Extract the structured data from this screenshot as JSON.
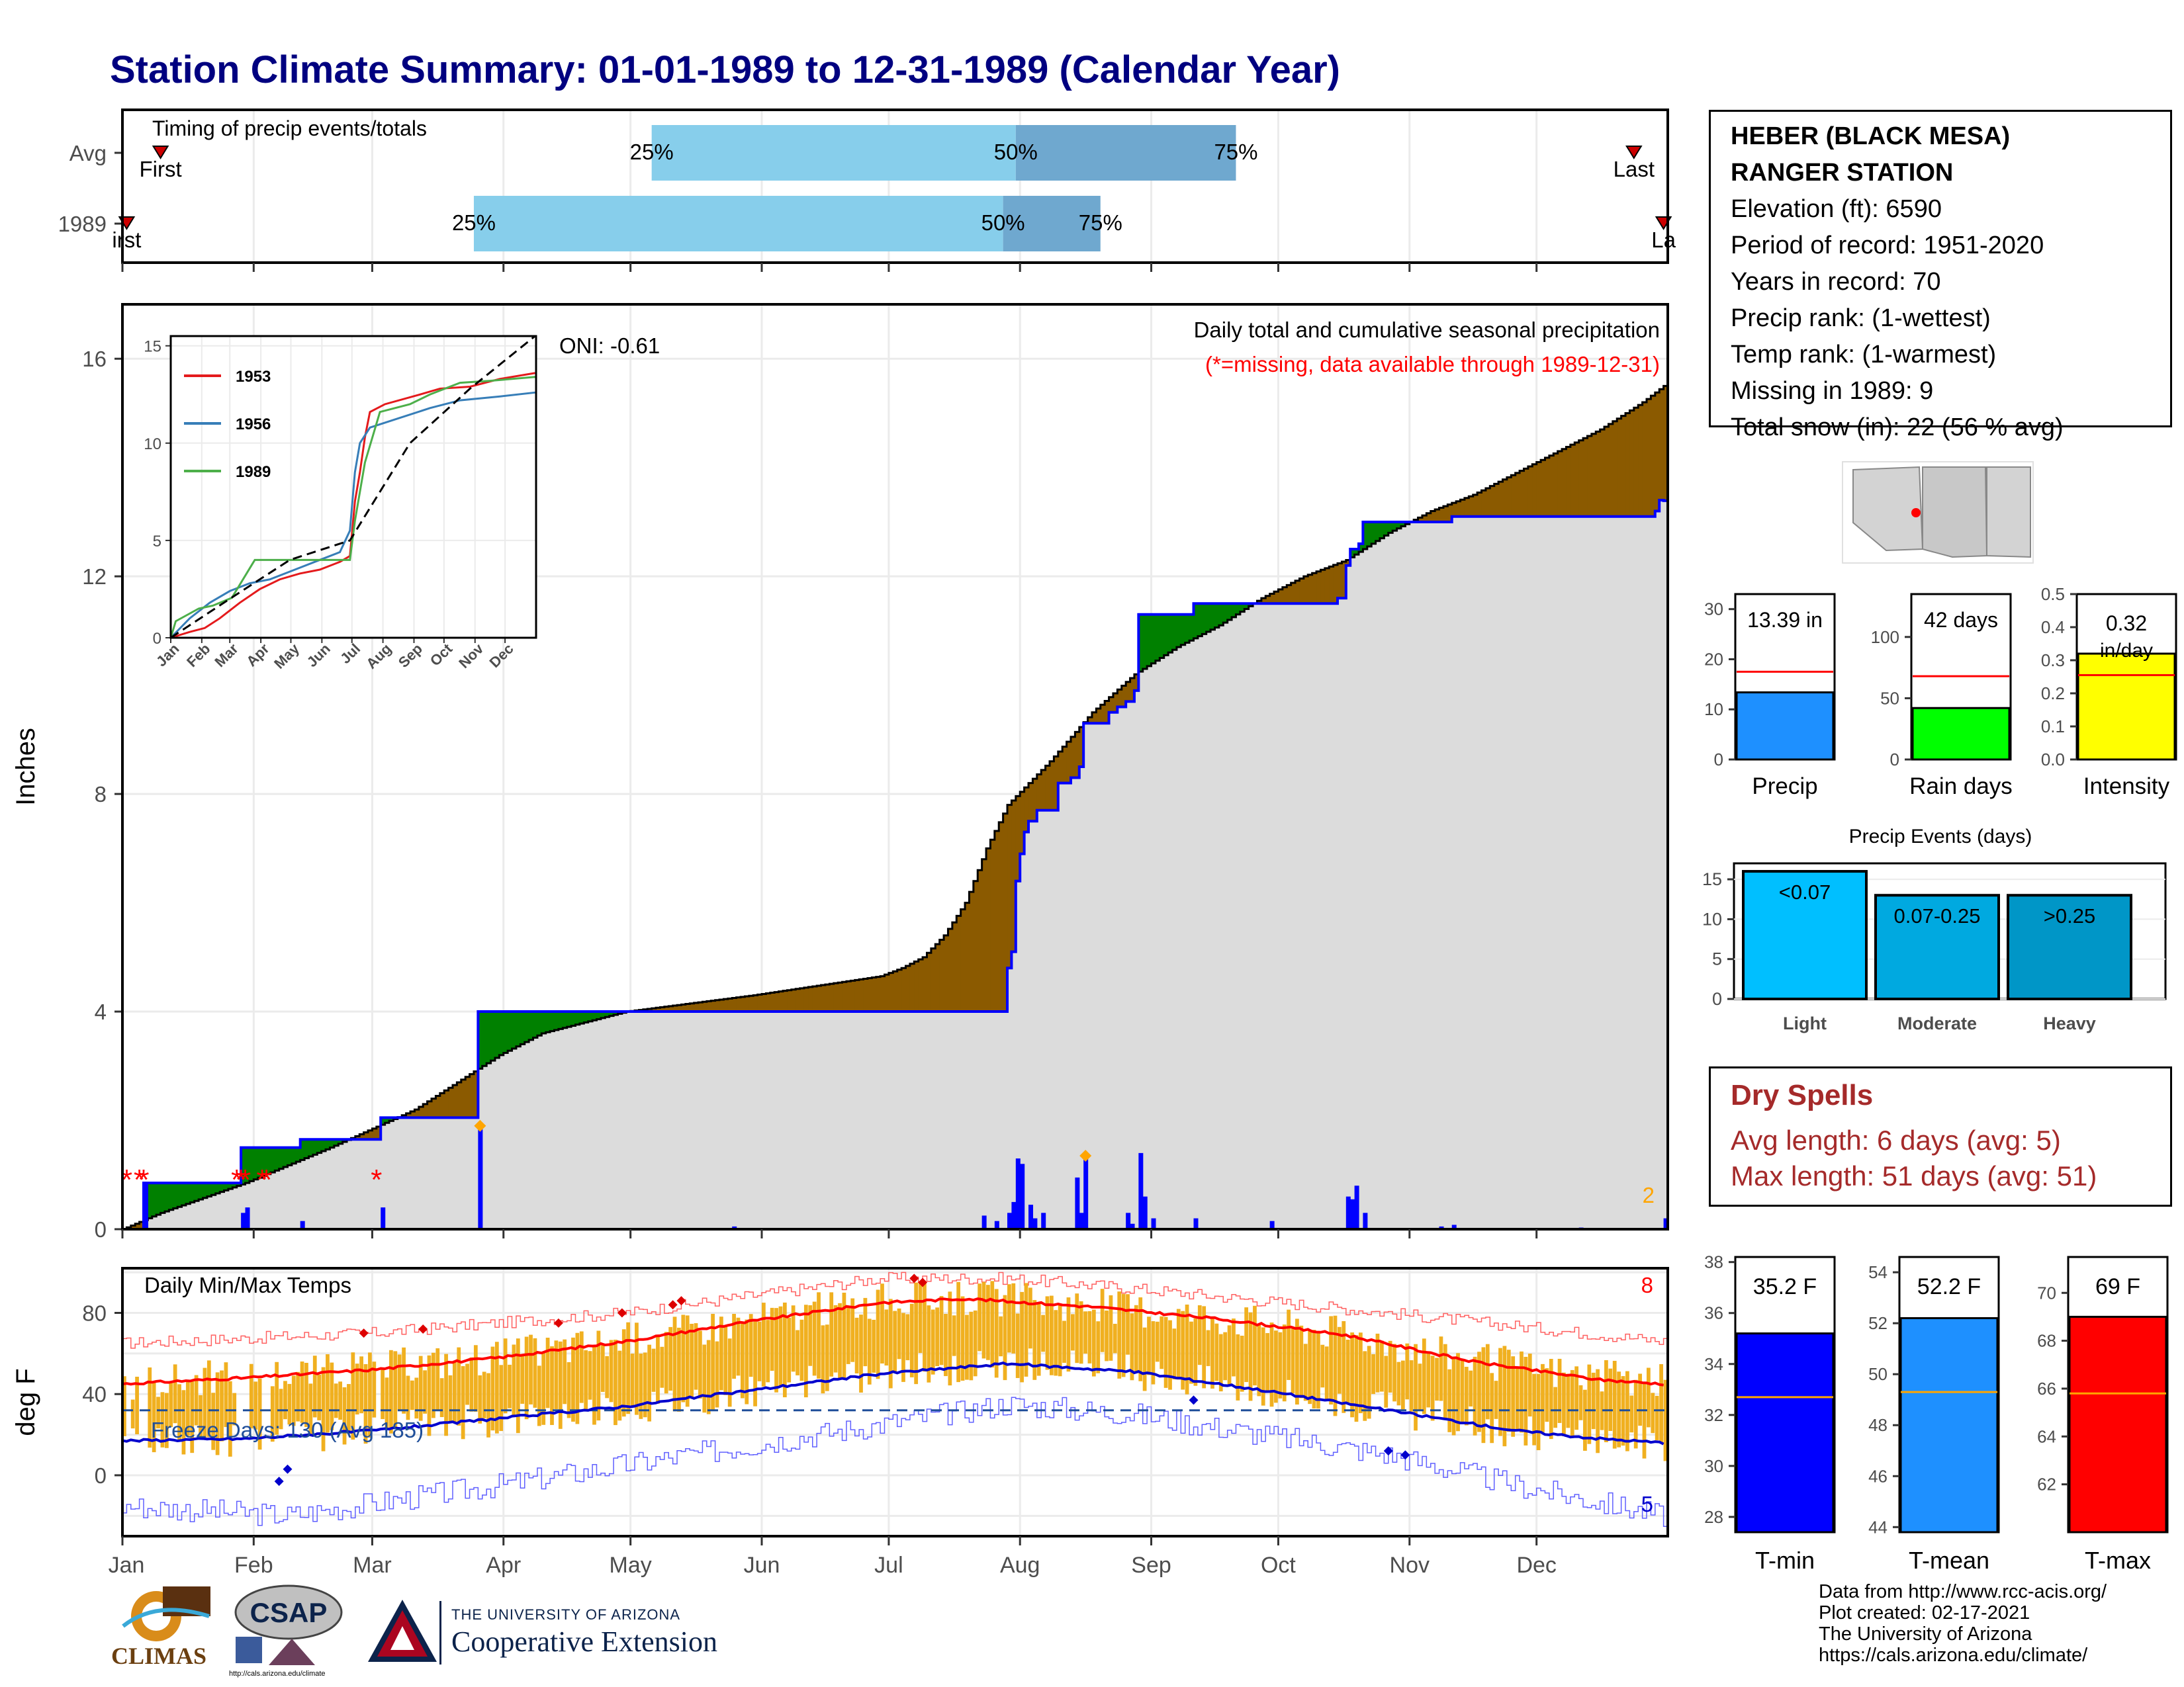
{
  "title": "Station Climate Summary: 01-01-1989 to 12-31-1989 (Calendar Year)",
  "station": {
    "name_line1": "HEBER (BLACK MESA)",
    "name_line2": "RANGER STATION",
    "elevation": "Elevation (ft): 6590",
    "period": "Period of record: 1951-2020",
    "years": "Years in record: 70",
    "precip_rank": "Precip rank:  (1-wettest)",
    "temp_rank": "Temp rank:  (1-warmest)",
    "missing": "Missing in 1989: 9",
    "snow": "Total snow (in): 22 (56 % avg)"
  },
  "dry_spells": {
    "title": "Dry Spells",
    "avg": "Avg length: 6 days (avg: 5)",
    "max": "Max length: 51 days (avg: 51)"
  },
  "footer": {
    "line1": "Data from http://www.rcc-acis.org/",
    "line2": "Plot created: 02-17-2021",
    "line3": "The University of Arizona",
    "line4": "https://cals.arizona.edu/climate/"
  },
  "logos": {
    "climas": "CLIMAS",
    "csap": "CSAP",
    "csap_url": "http://cals.arizona.edu/climate",
    "ua_line1": "THE UNIVERSITY OF ARIZONA",
    "ua_line2": "Cooperative Extension"
  },
  "colors": {
    "navy_title": "#000080",
    "precip_fill_above": "#8b5a00",
    "precip_fill_below": "#008000",
    "cum_avg_fill": "#dcdcdc",
    "daily_bar": "#0000ff",
    "temp_bar": "#f0b020",
    "tmax_line": "#ff0000",
    "tmin_line": "#0000cd",
    "timing_light": "#87ceeb",
    "timing_dark": "#6fa8cf",
    "dry_spell": "#a52a2a"
  },
  "chart_data": [
    {
      "id": "timing",
      "type": "bar",
      "title": "Timing of precip events/totals",
      "categories": [
        "Avg",
        "1989"
      ],
      "series": [
        {
          "name": "Avg",
          "first_day": 10,
          "p25_day": 126,
          "p50_day": 212,
          "p75_day": 264,
          "last_day": 358
        },
        {
          "name": "1989",
          "first_day": 2,
          "p25_day": 84,
          "p50_day": 209,
          "p75_day": 232,
          "last_day": 365
        }
      ],
      "labels": {
        "first": "First",
        "last": "Last",
        "first_1989": "irst",
        "last_1989": "La",
        "p25": "25%",
        "p50": "50%",
        "p75": "75%"
      }
    },
    {
      "id": "cumulative_precip",
      "type": "area",
      "ylabel": "Inches",
      "ylim": [
        0,
        17
      ],
      "yticks": [
        0,
        4,
        8,
        12,
        16
      ],
      "annotation_top": "Daily total and cumulative seasonal precipitation",
      "annotation_missing": "(*=missing, data available through 1989-12-31)",
      "oni": "ONI: -0.61",
      "corner_label": "2",
      "observed_cumulative": [
        [
          1,
          0
        ],
        [
          5,
          0
        ],
        [
          6,
          0.85
        ],
        [
          28,
          0.85
        ],
        [
          29,
          1.5
        ],
        [
          42,
          1.5
        ],
        [
          43,
          1.65
        ],
        [
          61,
          1.65
        ],
        [
          62,
          2.05
        ],
        [
          84,
          2.05
        ],
        [
          85,
          4.0
        ],
        [
          209,
          4.0
        ],
        [
          210,
          4.8
        ],
        [
          211,
          5.1
        ],
        [
          212,
          6.4
        ],
        [
          213,
          6.9
        ],
        [
          214,
          7.3
        ],
        [
          215,
          7.5
        ],
        [
          217,
          7.7
        ],
        [
          222,
          8.2
        ],
        [
          225,
          8.3
        ],
        [
          227,
          8.5
        ],
        [
          228,
          9.3
        ],
        [
          233,
          9.3
        ],
        [
          234,
          9.5
        ],
        [
          236,
          9.6
        ],
        [
          238,
          9.7
        ],
        [
          240,
          9.9
        ],
        [
          241,
          11.3
        ],
        [
          253,
          11.3
        ],
        [
          254,
          11.5
        ],
        [
          288,
          11.6
        ],
        [
          290,
          12.2
        ],
        [
          291,
          12.5
        ],
        [
          293,
          12.6
        ],
        [
          294,
          13.0
        ],
        [
          314,
          13.0
        ],
        [
          315,
          13.1
        ],
        [
          363,
          13.2
        ],
        [
          364,
          13.4
        ],
        [
          365,
          13.39
        ]
      ],
      "avg_cumulative": [
        [
          1,
          0
        ],
        [
          10,
          0.3
        ],
        [
          30,
          0.85
        ],
        [
          50,
          1.5
        ],
        [
          70,
          2.2
        ],
        [
          90,
          3.2
        ],
        [
          100,
          3.6
        ],
        [
          120,
          4.0
        ],
        [
          150,
          4.3
        ],
        [
          180,
          4.65
        ],
        [
          185,
          4.8
        ],
        [
          190,
          5.0
        ],
        [
          195,
          5.4
        ],
        [
          200,
          6.0
        ],
        [
          205,
          7.0
        ],
        [
          210,
          7.8
        ],
        [
          220,
          8.6
        ],
        [
          230,
          9.5
        ],
        [
          240,
          10.2
        ],
        [
          250,
          10.7
        ],
        [
          260,
          11.1
        ],
        [
          270,
          11.6
        ],
        [
          280,
          12.0
        ],
        [
          290,
          12.3
        ],
        [
          300,
          12.8
        ],
        [
          310,
          13.2
        ],
        [
          320,
          13.5
        ],
        [
          330,
          13.9
        ],
        [
          340,
          14.3
        ],
        [
          350,
          14.7
        ],
        [
          360,
          15.2
        ],
        [
          365,
          15.5
        ]
      ],
      "daily_precip": [
        [
          6,
          0.85
        ],
        [
          29,
          0.3
        ],
        [
          30,
          0.4
        ],
        [
          43,
          0.15
        ],
        [
          62,
          0.4
        ],
        [
          85,
          1.9
        ],
        [
          145,
          0.05
        ],
        [
          175,
          0.02
        ],
        [
          204,
          0.25
        ],
        [
          207,
          0.15
        ],
        [
          210,
          0.3
        ],
        [
          211,
          0.5
        ],
        [
          212,
          1.3
        ],
        [
          213,
          1.2
        ],
        [
          215,
          0.45
        ],
        [
          216,
          0.2
        ],
        [
          218,
          0.3
        ],
        [
          226,
          0.95
        ],
        [
          227,
          0.3
        ],
        [
          228,
          1.35
        ],
        [
          238,
          0.3
        ],
        [
          239,
          0.1
        ],
        [
          241,
          1.4
        ],
        [
          242,
          0.6
        ],
        [
          244,
          0.2
        ],
        [
          254,
          0.2
        ],
        [
          272,
          0.15
        ],
        [
          290,
          0.6
        ],
        [
          291,
          0.55
        ],
        [
          292,
          0.8
        ],
        [
          294,
          0.3
        ],
        [
          312,
          0.05
        ],
        [
          315,
          0.08
        ],
        [
          345,
          0.03
        ],
        [
          365,
          0.2
        ]
      ],
      "missing_days": [
        2,
        5,
        6,
        28,
        29,
        30,
        34,
        35,
        61
      ],
      "max_markers": [
        [
          85,
          1.9
        ],
        [
          228,
          1.35
        ]
      ]
    },
    {
      "id": "inset_cumulative",
      "type": "line",
      "ylim": [
        0,
        15.5
      ],
      "yticks": [
        0,
        5,
        10,
        15
      ],
      "xticks": [
        "Jan",
        "Feb",
        "Mar",
        "Apr",
        "May",
        "Jun",
        "Jul",
        "Aug",
        "Sep",
        "Oct",
        "Nov",
        "Dec"
      ],
      "series": [
        {
          "name": "1953",
          "color": "#e41a1c",
          "values": [
            [
              1,
              0
            ],
            [
              20,
              0.3
            ],
            [
              35,
              0.5
            ],
            [
              50,
              1.0
            ],
            [
              70,
              1.8
            ],
            [
              90,
              2.5
            ],
            [
              110,
              3.0
            ],
            [
              130,
              3.3
            ],
            [
              150,
              3.5
            ],
            [
              170,
              3.9
            ],
            [
              180,
              4.2
            ],
            [
              185,
              7.0
            ],
            [
              190,
              8.5
            ],
            [
              195,
              10.3
            ],
            [
              200,
              11.6
            ],
            [
              215,
              12.0
            ],
            [
              250,
              12.5
            ],
            [
              270,
              12.8
            ],
            [
              300,
              12.9
            ],
            [
              330,
              13.3
            ],
            [
              365,
              13.6
            ]
          ]
        },
        {
          "name": "1956",
          "color": "#377eb8",
          "values": [
            [
              1,
              0
            ],
            [
              20,
              1.0
            ],
            [
              40,
              1.8
            ],
            [
              60,
              2.4
            ],
            [
              80,
              2.8
            ],
            [
              100,
              3.0
            ],
            [
              120,
              3.4
            ],
            [
              150,
              4.0
            ],
            [
              170,
              4.4
            ],
            [
              180,
              5.5
            ],
            [
              185,
              8.5
            ],
            [
              190,
              10.0
            ],
            [
              200,
              10.8
            ],
            [
              230,
              11.3
            ],
            [
              260,
              11.8
            ],
            [
              290,
              12.2
            ],
            [
              330,
              12.4
            ],
            [
              365,
              12.6
            ]
          ]
        },
        {
          "name": "1989",
          "color": "#4daf4a",
          "values": [
            [
              1,
              0
            ],
            [
              6,
              0.85
            ],
            [
              29,
              1.5
            ],
            [
              43,
              1.65
            ],
            [
              62,
              2.05
            ],
            [
              85,
              4.0
            ],
            [
              180,
              4.0
            ],
            [
              185,
              6.0
            ],
            [
              195,
              9.0
            ],
            [
              210,
              11.6
            ],
            [
              240,
              12.0
            ],
            [
              260,
              12.5
            ],
            [
              290,
              13.1
            ],
            [
              320,
              13.2
            ],
            [
              365,
              13.4
            ]
          ]
        },
        {
          "name": "avg",
          "color": "#000000",
          "values": [
            [
              1,
              0
            ],
            [
              60,
              2.0
            ],
            [
              120,
              4.0
            ],
            [
              180,
              5.0
            ],
            [
              240,
              10.0
            ],
            [
              300,
              12.8
            ],
            [
              365,
              15.5
            ]
          ]
        }
      ]
    },
    {
      "id": "temps",
      "type": "bar",
      "title": "Daily Min/Max Temps",
      "ylabel": "deg F",
      "ylim": [
        -30,
        102
      ],
      "yticks": [
        0,
        40,
        80
      ],
      "xticks": [
        "Jan",
        "Feb",
        "Mar",
        "Apr",
        "May",
        "Jun",
        "Jul",
        "Aug",
        "Sep",
        "Oct",
        "Nov",
        "Dec"
      ],
      "freeze_label": "Freeze Days: 130 (Avg 185)",
      "freeze_line": 32,
      "record_high_count": "8",
      "record_low_count": "5",
      "avg_max": [
        [
          1,
          45
        ],
        [
          30,
          48
        ],
        [
          60,
          52
        ],
        [
          90,
          58
        ],
        [
          120,
          66
        ],
        [
          150,
          76
        ],
        [
          180,
          85
        ],
        [
          200,
          87
        ],
        [
          230,
          83
        ],
        [
          260,
          77
        ],
        [
          290,
          69
        ],
        [
          320,
          56
        ],
        [
          350,
          47
        ],
        [
          365,
          45
        ]
      ],
      "avg_min": [
        [
          1,
          17
        ],
        [
          30,
          18
        ],
        [
          60,
          22
        ],
        [
          90,
          28
        ],
        [
          120,
          34
        ],
        [
          150,
          42
        ],
        [
          180,
          50
        ],
        [
          210,
          55
        ],
        [
          240,
          51
        ],
        [
          270,
          42
        ],
        [
          300,
          32
        ],
        [
          330,
          22
        ],
        [
          350,
          18
        ],
        [
          365,
          16
        ]
      ],
      "record_max": [
        [
          1,
          65
        ],
        [
          60,
          70
        ],
        [
          120,
          80
        ],
        [
          180,
          97
        ],
        [
          210,
          97
        ],
        [
          240,
          92
        ],
        [
          300,
          80
        ],
        [
          365,
          66
        ]
      ],
      "record_min": [
        [
          1,
          -15
        ],
        [
          40,
          -20
        ],
        [
          90,
          -5
        ],
        [
          150,
          15
        ],
        [
          180,
          25
        ],
        [
          210,
          35
        ],
        [
          240,
          30
        ],
        [
          300,
          10
        ],
        [
          330,
          -5
        ],
        [
          365,
          -20
        ]
      ],
      "high_markers": [
        [
          58,
          70
        ],
        [
          72,
          72
        ],
        [
          104,
          75
        ],
        [
          119,
          80
        ],
        [
          131,
          84
        ],
        [
          133,
          86
        ],
        [
          188,
          97
        ],
        [
          190,
          95
        ]
      ],
      "low_markers": [
        [
          38,
          -3
        ],
        [
          40,
          3
        ],
        [
          254,
          37
        ],
        [
          300,
          12
        ],
        [
          304,
          10
        ]
      ]
    },
    {
      "id": "summary_precip",
      "type": "bar",
      "panels": [
        {
          "label": "Precip",
          "value_label": "13.39 in",
          "value": 13.39,
          "avg": 17.5,
          "ylim": [
            0,
            33
          ],
          "yticks": [
            0,
            10,
            20,
            30
          ],
          "color": "#1e90ff"
        },
        {
          "label": "Rain days",
          "value_label": "42 days",
          "value": 42,
          "avg": 68,
          "ylim": [
            0,
            135
          ],
          "yticks": [
            0,
            50,
            100
          ],
          "color": "#00ff00"
        },
        {
          "label": "Intensity",
          "value_label": "0.32 in/day",
          "value": 0.32,
          "avg": 0.255,
          "ylim": [
            0,
            0.5
          ],
          "yticks": [
            0.0,
            0.1,
            0.2,
            0.3,
            0.4,
            0.5
          ],
          "color": "#ffff00"
        }
      ]
    },
    {
      "id": "precip_events",
      "type": "bar",
      "title": "Precip Events (days)",
      "categories": [
        "Light",
        "Moderate",
        "Heavy"
      ],
      "bar_labels": [
        "<0.07",
        "0.07-0.25",
        ">0.25"
      ],
      "values": [
        16,
        13,
        13
      ],
      "ylim": [
        0,
        17
      ],
      "yticks": [
        0,
        5,
        10,
        15
      ],
      "colors": [
        "#00bfff",
        "#00a9e0",
        "#0096c7"
      ]
    },
    {
      "id": "summary_temp",
      "type": "bar",
      "panels": [
        {
          "label": "T-min",
          "value_label": "35.2 F",
          "value": 35.2,
          "avg": 32.7,
          "ylim": [
            27.4,
            38.2
          ],
          "yticks": [
            28,
            30,
            32,
            34,
            36,
            38
          ],
          "color": "#0000ff"
        },
        {
          "label": "T-mean",
          "value_label": "52.2 F",
          "value": 52.2,
          "avg": 49.3,
          "ylim": [
            43.8,
            54.6
          ],
          "yticks": [
            44,
            46,
            48,
            50,
            52,
            54
          ],
          "color": "#1e90ff"
        },
        {
          "label": "T-max",
          "value_label": "69 F",
          "value": 69.0,
          "avg": 65.8,
          "ylim": [
            60.0,
            71.5
          ],
          "yticks": [
            62,
            64,
            66,
            68,
            70
          ],
          "color": "#ff0000"
        }
      ]
    }
  ]
}
